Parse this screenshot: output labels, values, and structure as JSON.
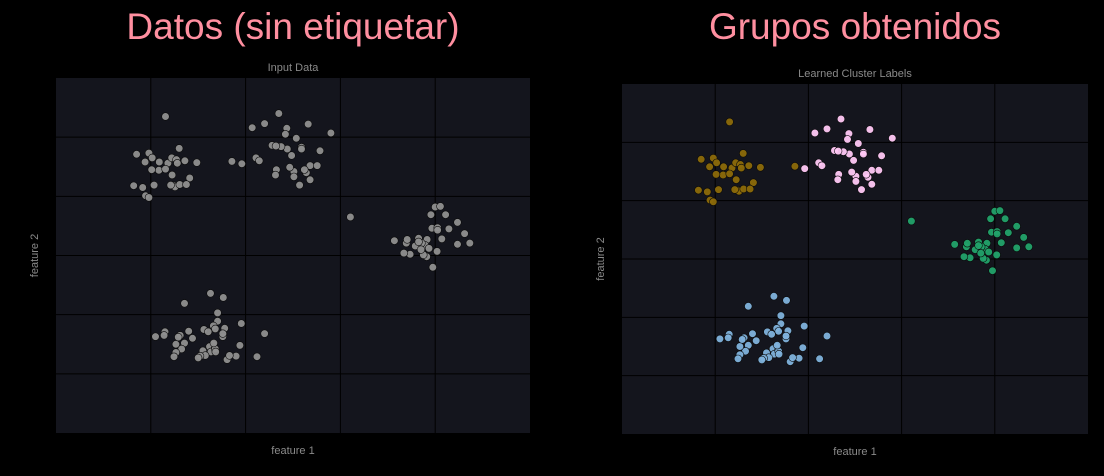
{
  "headings": {
    "left": "Datos (sin etiquetar)",
    "right": "Grupos obtenidos"
  },
  "colors": {
    "background": "#000000",
    "plot_background": "#14151d",
    "grid": "#000000",
    "heading": "#ff8fa0",
    "unlabeled_point": "#8f8f8f",
    "cluster_0": "#8c6a0a",
    "cluster_1": "#ffc8f5",
    "cluster_2": "#22a26a",
    "cluster_3": "#7fb2dc"
  },
  "chart_data": [
    {
      "type": "scatter",
      "title": "Input Data",
      "xlabel": "feature 1",
      "ylabel": "feature 2",
      "xlim": [
        0,
        10
      ],
      "ylim": [
        0,
        6
      ],
      "grid": true,
      "tick_labels_shown": false,
      "series": [
        {
          "color": "#8f8f8f",
          "points": [
            [
              2.31,
              5.35
            ],
            [
              1.7,
              4.71
            ],
            [
              1.88,
              4.58
            ],
            [
              2.72,
              4.6
            ],
            [
              2.97,
              4.57
            ],
            [
              1.96,
              4.73
            ],
            [
              2.36,
              4.56
            ],
            [
              2.17,
              4.44
            ],
            [
              2.6,
              4.81
            ],
            [
              2.44,
              4.65
            ],
            [
              2.49,
              4.18
            ],
            [
              1.89,
              4.01
            ],
            [
              2.51,
              4.16
            ],
            [
              2.02,
              4.45
            ],
            [
              1.83,
              4.15
            ],
            [
              2.45,
              4.36
            ],
            [
              2.54,
              4.62
            ],
            [
              2.03,
              4.65
            ],
            [
              2.31,
              4.46
            ],
            [
              1.64,
              4.18
            ],
            [
              2.07,
              4.19
            ],
            [
              2.82,
              4.31
            ],
            [
              2.18,
              4.58
            ],
            [
              2.61,
              4.2
            ],
            [
              2.56,
              4.56
            ],
            [
              2.42,
              4.19
            ],
            [
              1.96,
              3.98
            ],
            [
              2.75,
              4.2
            ],
            [
              4.7,
              5.4
            ],
            [
              4.14,
              5.16
            ],
            [
              4.4,
              5.23
            ],
            [
              4.87,
              5.15
            ],
            [
              5.32,
              5.22
            ],
            [
              5.8,
              5.07
            ],
            [
              5.18,
              4.83
            ],
            [
              4.88,
              4.8
            ],
            [
              4.75,
              4.84
            ],
            [
              4.97,
              4.69
            ],
            [
              4.84,
              5.05
            ],
            [
              5.07,
              4.98
            ],
            [
              5.57,
              4.77
            ],
            [
              4.22,
              4.65
            ],
            [
              4.56,
              4.86
            ],
            [
              3.92,
              4.55
            ],
            [
              4.64,
              4.85
            ],
            [
              4.29,
              4.6
            ],
            [
              5.36,
              4.52
            ],
            [
              4.65,
              4.45
            ],
            [
              5.02,
              4.42
            ],
            [
              5.28,
              4.4
            ],
            [
              5.51,
              4.52
            ],
            [
              4.63,
              4.36
            ],
            [
              5.24,
              4.45
            ],
            [
              5.02,
              4.33
            ],
            [
              5.36,
              4.28
            ],
            [
              4.93,
              4.49
            ],
            [
              5.14,
              4.19
            ],
            [
              3.71,
              4.59
            ],
            [
              5.18,
              4.8
            ],
            [
              8.0,
              3.82
            ],
            [
              8.11,
              3.83
            ],
            [
              7.91,
              3.69
            ],
            [
              8.22,
              3.69
            ],
            [
              8.29,
              3.45
            ],
            [
              6.21,
              3.65
            ],
            [
              7.39,
              3.21
            ],
            [
              7.41,
              3.27
            ],
            [
              8.62,
              3.37
            ],
            [
              7.58,
              3.16
            ],
            [
              7.65,
              3.29
            ],
            [
              7.83,
              3.27
            ],
            [
              7.79,
              3.17
            ],
            [
              7.93,
              3.46
            ],
            [
              7.87,
              3.12
            ],
            [
              8.14,
              3.28
            ],
            [
              8.47,
              3.19
            ],
            [
              7.71,
              3.21
            ],
            [
              8.05,
              3.47
            ],
            [
              7.14,
              3.25
            ],
            [
              7.82,
              2.98
            ],
            [
              7.47,
              3.02
            ],
            [
              8.47,
              3.56
            ],
            [
              8.05,
              3.43
            ],
            [
              7.75,
              3.01
            ],
            [
              7.34,
              3.04
            ],
            [
              7.95,
              2.8
            ],
            [
              7.65,
              3.23
            ],
            [
              8.04,
              3.07
            ],
            [
              8.73,
              3.21
            ],
            [
              7.7,
              3.1
            ]
          ]
        },
        {
          "color": "#8f8f8f",
          "points": [
            [
              3.26,
              2.36
            ],
            [
              2.71,
              2.19
            ],
            [
              3.53,
              2.29
            ],
            [
              3.41,
              2.03
            ],
            [
              3.41,
              1.89
            ],
            [
              3.32,
              1.81
            ],
            [
              3.56,
              1.77
            ],
            [
              3.12,
              1.75
            ],
            [
              2.62,
              1.65
            ],
            [
              3.36,
              1.76
            ],
            [
              3.53,
              1.67
            ],
            [
              3.31,
              1.5
            ],
            [
              2.8,
              1.72
            ],
            [
              2.88,
              1.6
            ],
            [
              2.3,
              1.71
            ],
            [
              2.28,
              1.65
            ],
            [
              2.1,
              1.63
            ],
            [
              2.71,
              1.52
            ],
            [
              3.24,
              1.46
            ],
            [
              3.91,
              1.85
            ],
            [
              3.52,
              1.63
            ],
            [
              4.4,
              1.68
            ],
            [
              3.52,
              1.68
            ],
            [
              3.21,
              1.71
            ],
            [
              3.35,
              1.42
            ],
            [
              2.65,
              1.42
            ],
            [
              2.53,
              1.36
            ],
            [
              3.8,
              1.3
            ],
            [
              3.1,
              1.39
            ],
            [
              3.27,
              1.37
            ],
            [
              3.15,
              1.31
            ],
            [
              2.49,
              1.29
            ],
            [
              3.88,
              1.48
            ],
            [
              3.61,
              1.24
            ],
            [
              3.04,
              1.3
            ],
            [
              3.66,
              1.31
            ],
            [
              3.36,
              1.42
            ],
            [
              2.53,
              1.5
            ],
            [
              4.24,
              1.29
            ],
            [
              3.0,
              1.27
            ],
            [
              3.37,
              1.37
            ],
            [
              2.58,
              1.62
            ],
            [
              3.33,
              1.52
            ]
          ]
        }
      ]
    },
    {
      "type": "scatter",
      "title": "Learned Cluster Labels",
      "xlabel": "feature 1",
      "ylabel": "feature 2",
      "xlim": [
        0,
        10
      ],
      "ylim": [
        0,
        6
      ],
      "grid": true,
      "tick_labels_shown": false,
      "series": [
        {
          "color": "#8c6a0a",
          "points": [
            [
              2.31,
              5.35
            ],
            [
              1.7,
              4.71
            ],
            [
              1.88,
              4.58
            ],
            [
              2.72,
              4.6
            ],
            [
              2.97,
              4.57
            ],
            [
              1.96,
              4.73
            ],
            [
              2.36,
              4.56
            ],
            [
              2.17,
              4.44
            ],
            [
              2.6,
              4.81
            ],
            [
              2.44,
              4.65
            ],
            [
              2.49,
              4.18
            ],
            [
              1.89,
              4.01
            ],
            [
              2.51,
              4.16
            ],
            [
              2.02,
              4.45
            ],
            [
              1.83,
              4.15
            ],
            [
              2.45,
              4.36
            ],
            [
              2.54,
              4.62
            ],
            [
              2.03,
              4.65
            ],
            [
              2.31,
              4.46
            ],
            [
              1.64,
              4.18
            ],
            [
              2.07,
              4.19
            ],
            [
              2.82,
              4.31
            ],
            [
              2.18,
              4.58
            ],
            [
              2.61,
              4.2
            ],
            [
              2.56,
              4.56
            ],
            [
              2.42,
              4.19
            ],
            [
              1.96,
              3.98
            ],
            [
              2.75,
              4.2
            ],
            [
              3.71,
              4.59
            ]
          ]
        },
        {
          "color": "#ffc8f5",
          "points": [
            [
              4.7,
              5.4
            ],
            [
              4.14,
              5.16
            ],
            [
              4.4,
              5.23
            ],
            [
              4.87,
              5.15
            ],
            [
              5.32,
              5.22
            ],
            [
              5.8,
              5.07
            ],
            [
              5.18,
              4.83
            ],
            [
              4.88,
              4.8
            ],
            [
              4.75,
              4.84
            ],
            [
              4.97,
              4.69
            ],
            [
              4.84,
              5.05
            ],
            [
              5.07,
              4.98
            ],
            [
              5.57,
              4.77
            ],
            [
              4.22,
              4.65
            ],
            [
              4.56,
              4.86
            ],
            [
              3.92,
              4.55
            ],
            [
              4.64,
              4.85
            ],
            [
              4.29,
              4.6
            ],
            [
              5.36,
              4.52
            ],
            [
              4.65,
              4.45
            ],
            [
              5.02,
              4.42
            ],
            [
              5.28,
              4.4
            ],
            [
              5.51,
              4.52
            ],
            [
              4.63,
              4.36
            ],
            [
              5.24,
              4.45
            ],
            [
              5.02,
              4.33
            ],
            [
              5.36,
              4.28
            ],
            [
              4.93,
              4.49
            ],
            [
              5.14,
              4.19
            ],
            [
              5.18,
              4.8
            ]
          ]
        },
        {
          "color": "#22a26a",
          "points": [
            [
              8.0,
              3.82
            ],
            [
              8.11,
              3.83
            ],
            [
              7.91,
              3.69
            ],
            [
              8.22,
              3.69
            ],
            [
              8.29,
              3.45
            ],
            [
              6.21,
              3.65
            ],
            [
              7.39,
              3.21
            ],
            [
              7.41,
              3.27
            ],
            [
              8.62,
              3.37
            ],
            [
              7.58,
              3.16
            ],
            [
              7.65,
              3.29
            ],
            [
              7.83,
              3.27
            ],
            [
              7.79,
              3.17
            ],
            [
              7.93,
              3.46
            ],
            [
              7.87,
              3.12
            ],
            [
              8.14,
              3.28
            ],
            [
              8.47,
              3.19
            ],
            [
              7.71,
              3.21
            ],
            [
              8.05,
              3.47
            ],
            [
              7.14,
              3.25
            ],
            [
              7.82,
              2.98
            ],
            [
              7.47,
              3.02
            ],
            [
              8.47,
              3.56
            ],
            [
              8.05,
              3.43
            ],
            [
              7.75,
              3.01
            ],
            [
              7.34,
              3.04
            ],
            [
              7.95,
              2.8
            ],
            [
              7.65,
              3.23
            ],
            [
              8.04,
              3.07
            ],
            [
              8.73,
              3.21
            ],
            [
              7.7,
              3.1
            ]
          ]
        },
        {
          "color": "#7fb2dc",
          "points": [
            [
              3.26,
              2.36
            ],
            [
              2.71,
              2.19
            ],
            [
              3.53,
              2.29
            ],
            [
              3.41,
              2.03
            ],
            [
              3.41,
              1.89
            ],
            [
              3.32,
              1.81
            ],
            [
              3.56,
              1.77
            ],
            [
              3.12,
              1.75
            ],
            [
              2.62,
              1.65
            ],
            [
              3.36,
              1.76
            ],
            [
              3.53,
              1.67
            ],
            [
              3.31,
              1.5
            ],
            [
              2.8,
              1.72
            ],
            [
              2.88,
              1.6
            ],
            [
              2.3,
              1.71
            ],
            [
              2.28,
              1.65
            ],
            [
              2.1,
              1.63
            ],
            [
              2.71,
              1.52
            ],
            [
              3.24,
              1.46
            ],
            [
              3.91,
              1.85
            ],
            [
              3.52,
              1.63
            ],
            [
              4.4,
              1.68
            ],
            [
              3.52,
              1.68
            ],
            [
              3.21,
              1.71
            ],
            [
              3.35,
              1.42
            ],
            [
              2.65,
              1.42
            ],
            [
              2.53,
              1.36
            ],
            [
              3.8,
              1.3
            ],
            [
              3.1,
              1.39
            ],
            [
              3.27,
              1.37
            ],
            [
              3.15,
              1.31
            ],
            [
              2.49,
              1.29
            ],
            [
              3.88,
              1.48
            ],
            [
              3.61,
              1.24
            ],
            [
              3.04,
              1.3
            ],
            [
              3.66,
              1.31
            ],
            [
              3.36,
              1.42
            ],
            [
              2.53,
              1.5
            ],
            [
              4.24,
              1.29
            ],
            [
              3.0,
              1.27
            ],
            [
              3.37,
              1.37
            ],
            [
              2.58,
              1.62
            ],
            [
              3.33,
              1.52
            ]
          ]
        }
      ]
    }
  ]
}
